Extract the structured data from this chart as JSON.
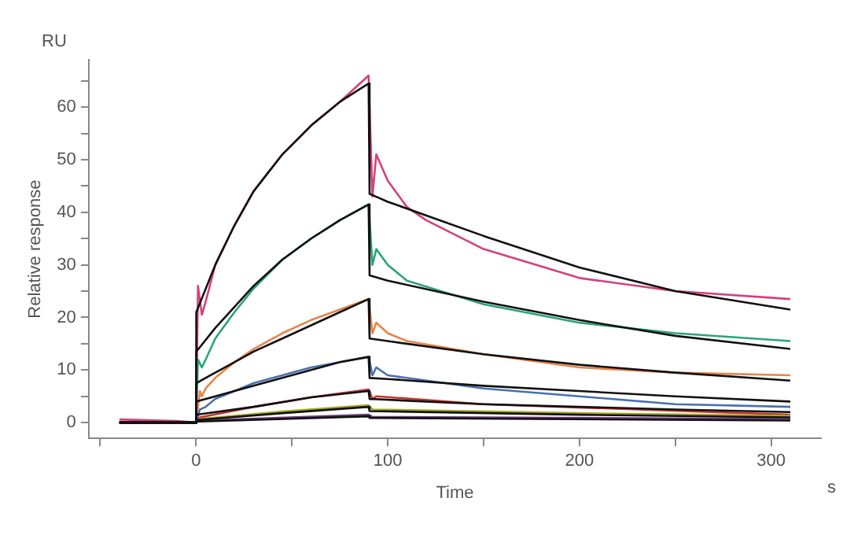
{
  "chart_data": {
    "type": "line",
    "xlabel": "Time",
    "ylabel": "Relative response",
    "annotations": [
      "RU",
      "s"
    ],
    "marker": "none",
    "line_style": "solid",
    "xlim": [
      -56,
      326
    ],
    "xticks": [
      {
        "value": -50,
        "label": null
      },
      0,
      {
        "value": 50,
        "label": null
      },
      100,
      {
        "value": 150,
        "label": null
      },
      200,
      {
        "value": 250,
        "label": null
      },
      300
    ],
    "ylim": [
      -3,
      69
    ],
    "yticks": [
      0,
      {
        "value": 5,
        "label": null
      },
      10,
      {
        "value": 15,
        "label": null
      },
      20,
      {
        "value": 25,
        "label": null
      },
      30,
      {
        "value": 35,
        "label": null
      },
      40,
      {
        "value": 45,
        "label": null
      },
      50,
      {
        "value": 55,
        "label": null
      },
      60,
      {
        "value": 65,
        "label": null
      }
    ],
    "series": [
      {
        "color": "#d6407a",
        "x": [
          -40,
          -10,
          0,
          1,
          3,
          5,
          10,
          20,
          30,
          45,
          60,
          75,
          90,
          92,
          94,
          100,
          110,
          120,
          150,
          200,
          250,
          310
        ],
        "values": [
          0.6,
          0.3,
          0,
          26,
          20.5,
          23,
          30,
          37.5,
          44,
          51,
          56.5,
          61,
          66,
          43,
          51,
          46,
          41,
          38.5,
          33,
          27.5,
          25,
          23.5
        ]
      },
      {
        "color": "#2aa37a",
        "x": [
          -40,
          0,
          1,
          3,
          5,
          10,
          20,
          30,
          45,
          60,
          75,
          90,
          92,
          94,
          100,
          110,
          150,
          200,
          250,
          310
        ],
        "values": [
          0,
          0,
          12,
          10.5,
          12,
          16,
          21,
          25.5,
          31,
          35,
          38.5,
          41.5,
          30,
          33,
          30,
          27,
          22.5,
          19,
          17,
          15.5
        ]
      },
      {
        "color": "#e8834a",
        "x": [
          -40,
          0,
          2,
          3,
          5,
          10,
          20,
          30,
          45,
          60,
          75,
          90,
          92,
          94,
          100,
          110,
          150,
          200,
          250,
          310
        ],
        "values": [
          0,
          0,
          6,
          5,
          6.5,
          8.5,
          11.5,
          14,
          17,
          19.5,
          21.5,
          23.5,
          17,
          19,
          17,
          15.5,
          13,
          10.5,
          9.5,
          9
        ]
      },
      {
        "color": "#4a6fb0",
        "x": [
          -40,
          0,
          2,
          5,
          10,
          20,
          30,
          45,
          60,
          75,
          90,
          92,
          94,
          100,
          150,
          200,
          250,
          310
        ],
        "values": [
          0,
          0,
          2.5,
          3,
          4.5,
          6,
          7.5,
          9,
          10.5,
          11.5,
          12.5,
          9,
          10.5,
          9,
          6.5,
          5,
          3.5,
          3
        ]
      },
      {
        "color": "#c83232",
        "x": [
          -40,
          0,
          2,
          30,
          60,
          90,
          92,
          94,
          150,
          310
        ],
        "values": [
          0,
          0,
          1,
          3,
          4.8,
          6.3,
          4.5,
          5,
          3.5,
          1.5
        ]
      },
      {
        "color": "#a8a820",
        "x": [
          -40,
          0,
          2,
          45,
          90,
          92,
          200,
          310
        ],
        "values": [
          0,
          0,
          0.7,
          2.1,
          3.3,
          2.5,
          1.8,
          1.3
        ]
      },
      {
        "color": "#6a3d7a",
        "x": [
          -40,
          0,
          2,
          90,
          92,
          310
        ],
        "values": [
          0,
          0,
          0.4,
          1.5,
          1.1,
          0.7
        ]
      },
      {
        "color": "#111111",
        "x": [
          -40,
          0,
          0.1,
          10,
          20,
          30,
          45,
          60,
          75,
          90,
          90.5,
          100,
          150,
          200,
          250,
          310
        ],
        "values": [
          0,
          0,
          21,
          30,
          37.5,
          44,
          51,
          56.5,
          61,
          64.5,
          43.5,
          42,
          35.5,
          29.5,
          25,
          21.5
        ]
      },
      {
        "color": "#111111",
        "x": [
          -40,
          0,
          0.1,
          10,
          20,
          30,
          45,
          60,
          75,
          90,
          90.5,
          100,
          150,
          200,
          250,
          310
        ],
        "values": [
          0,
          0,
          13.5,
          18,
          22,
          26,
          31,
          35,
          38.5,
          41.5,
          28,
          27,
          23,
          19.5,
          16.5,
          14
        ]
      },
      {
        "color": "#111111",
        "x": [
          -40,
          0,
          0.1,
          10,
          20,
          30,
          45,
          60,
          75,
          90,
          90.5,
          100,
          150,
          200,
          250,
          310
        ],
        "values": [
          0,
          0,
          7.5,
          9.5,
          11.5,
          13.5,
          16,
          18.5,
          21,
          23.5,
          16,
          15.5,
          13,
          11,
          9.5,
          8
        ]
      },
      {
        "color": "#111111",
        "x": [
          -40,
          0,
          0.1,
          10,
          20,
          30,
          45,
          60,
          75,
          90,
          90.5,
          100,
          150,
          200,
          250,
          310
        ],
        "values": [
          0,
          0,
          4,
          5,
          6,
          7,
          8.5,
          10,
          11.5,
          12.5,
          8.5,
          8.3,
          7,
          6,
          5,
          4
        ]
      },
      {
        "color": "#111111",
        "x": [
          -40,
          0,
          0.1,
          30,
          60,
          90,
          90.5,
          150,
          250,
          310
        ],
        "values": [
          0,
          0,
          1.5,
          3,
          4.8,
          6,
          4.5,
          3.5,
          2.5,
          2
        ]
      },
      {
        "color": "#111111",
        "x": [
          -40,
          0,
          0.1,
          45,
          90,
          90.5,
          200,
          310
        ],
        "values": [
          0,
          0,
          0.5,
          1.8,
          3,
          2.2,
          1.5,
          1
        ]
      },
      {
        "color": "#111111",
        "x": [
          -40,
          0,
          0.1,
          90,
          90.5,
          310
        ],
        "values": [
          0,
          0,
          0.2,
          1.2,
          0.9,
          0.4
        ]
      }
    ]
  }
}
